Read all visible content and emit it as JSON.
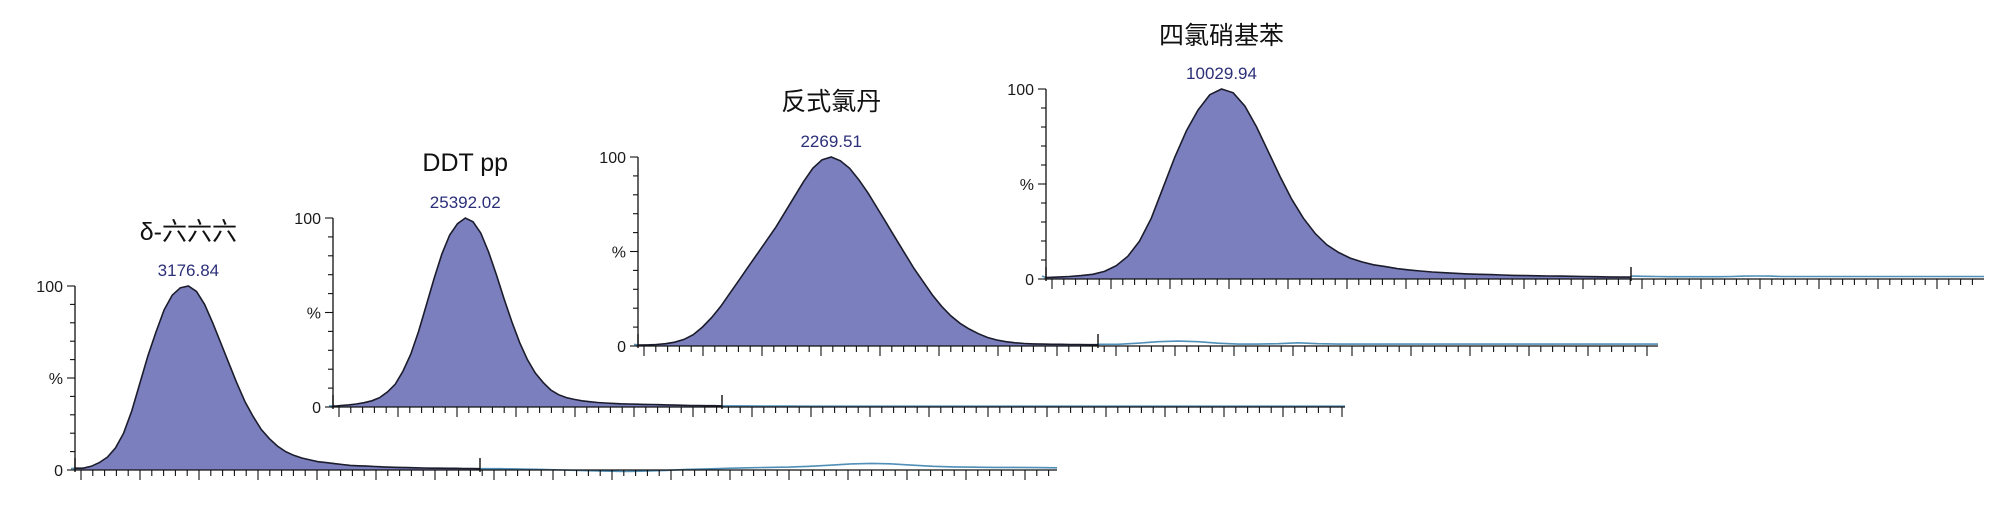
{
  "chart_data": [
    {
      "type": "area",
      "title": "δ-六六六",
      "peak_label": "3176.84",
      "yticks": [
        "100",
        "%",
        "0"
      ],
      "ylim": [
        0,
        100
      ],
      "x_mark": [
        0.0,
        1.0
      ],
      "x": [
        0.0,
        0.01,
        0.02,
        0.04,
        0.06,
        0.08,
        0.1,
        0.12,
        0.14,
        0.16,
        0.18,
        0.2,
        0.22,
        0.24,
        0.26,
        0.28,
        0.3,
        0.32,
        0.34,
        0.36,
        0.38,
        0.4,
        0.42,
        0.44,
        0.46,
        0.48,
        0.5,
        0.52,
        0.54,
        0.56,
        0.58,
        0.6,
        0.62,
        0.64,
        0.66,
        0.68,
        0.7,
        0.72,
        0.74,
        0.76,
        0.78,
        0.8,
        0.82,
        0.84,
        0.86,
        0.88,
        0.9,
        0.92,
        0.94,
        0.96,
        0.98,
        1.0
      ],
      "y": [
        1,
        1,
        1,
        2,
        4,
        7,
        12,
        20,
        32,
        47,
        62,
        75,
        87,
        95,
        99,
        100,
        97,
        90,
        80,
        69,
        58,
        47,
        37,
        29,
        22,
        17,
        13,
        10,
        8,
        6.5,
        5.5,
        4.5,
        4,
        3.5,
        3,
        2.5,
        2.3,
        2.1,
        1.9,
        1.7,
        1.5,
        1.4,
        1.3,
        1.2,
        1.1,
        1.0,
        1.0,
        0.9,
        0.9,
        0.8,
        0.8,
        0.7
      ],
      "baseline_y": [
        0.7,
        0.7,
        0.5,
        0.3,
        0.0,
        -0.3,
        -0.6,
        -0.8,
        -0.6,
        -0.2,
        0.3,
        0.6,
        0.9,
        1.2,
        1.4,
        1.6,
        2.0,
        2.6,
        3.3,
        3.6,
        3.3,
        2.6,
        2.0,
        1.7,
        1.5,
        1.4,
        1.4,
        1.3,
        1.2
      ],
      "colors": {
        "fill": "#7b7fbd",
        "outline": "#1b1c2c",
        "baseline": "#4f8fb8"
      }
    },
    {
      "type": "area",
      "title": "DDT pp",
      "peak_label": "25392.02",
      "yticks": [
        "100",
        "%",
        "0"
      ],
      "ylim": [
        0,
        100
      ],
      "x_mark": [
        0.0,
        1.0
      ],
      "x": [
        0.0,
        0.01,
        0.02,
        0.04,
        0.06,
        0.08,
        0.1,
        0.12,
        0.14,
        0.16,
        0.18,
        0.2,
        0.22,
        0.24,
        0.26,
        0.28,
        0.3,
        0.32,
        0.34,
        0.36,
        0.38,
        0.4,
        0.42,
        0.44,
        0.46,
        0.48,
        0.5,
        0.52,
        0.54,
        0.56,
        0.58,
        0.6,
        0.62,
        0.64,
        0.66,
        0.68,
        0.7,
        0.72,
        0.74,
        0.76,
        0.78,
        0.8,
        0.82,
        0.84,
        0.86,
        0.88,
        0.9,
        0.92,
        0.94,
        0.96,
        0.98,
        1.0
      ],
      "y": [
        0.5,
        0.6,
        0.8,
        1.1,
        1.6,
        2.3,
        3.3,
        5,
        8,
        12,
        19,
        28,
        40,
        54,
        68,
        81,
        91,
        97,
        100,
        98,
        92,
        82,
        70,
        57,
        45,
        34,
        25,
        18,
        13,
        9,
        6.5,
        5,
        4,
        3.3,
        2.8,
        2.4,
        2.1,
        1.9,
        1.7,
        1.6,
        1.5,
        1.4,
        1.3,
        1.2,
        1.1,
        1.0,
        0.9,
        0.8,
        0.8,
        0.7,
        0.7,
        0.6
      ],
      "baseline_y": [
        0.6,
        0.6,
        0.5,
        0.5,
        0.4,
        0.4,
        0.4,
        0.4,
        0.4,
        0.4,
        0.4,
        0.4,
        0.4,
        0.4,
        0.4,
        0.4,
        0.4,
        0.4,
        0.4,
        0.4,
        0.4,
        0.4,
        0.4,
        0.4,
        0.4,
        0.4,
        0.4,
        0.4,
        0.4
      ],
      "colors": {
        "fill": "#7b7fbd",
        "outline": "#1b1c2c",
        "baseline": "#4f8fb8"
      }
    },
    {
      "type": "area",
      "title": "反式氯丹",
      "peak_label": "2269.51",
      "yticks": [
        "100",
        "%",
        "0"
      ],
      "ylim": [
        0,
        100
      ],
      "x_mark": [
        0.0,
        1.0
      ],
      "x": [
        0.0,
        0.02,
        0.04,
        0.06,
        0.08,
        0.1,
        0.12,
        0.14,
        0.16,
        0.18,
        0.2,
        0.22,
        0.24,
        0.26,
        0.28,
        0.3,
        0.32,
        0.34,
        0.36,
        0.38,
        0.4,
        0.42,
        0.44,
        0.46,
        0.48,
        0.5,
        0.52,
        0.54,
        0.56,
        0.58,
        0.6,
        0.62,
        0.64,
        0.66,
        0.68,
        0.7,
        0.72,
        0.74,
        0.76,
        0.78,
        0.8,
        0.82,
        0.84,
        0.86,
        0.88,
        0.9,
        0.92,
        0.94,
        0.96,
        0.98,
        1.0
      ],
      "y": [
        0.5,
        0.6,
        0.8,
        1.2,
        2.0,
        3.5,
        6,
        10,
        15,
        21,
        28,
        35,
        42,
        49,
        56,
        63,
        71,
        79,
        87,
        94,
        98.5,
        100,
        98,
        94,
        88,
        81,
        73,
        65,
        57,
        49,
        41,
        34,
        27,
        21,
        16,
        12,
        9,
        6.5,
        4.5,
        3.2,
        2.3,
        1.7,
        1.3,
        1.1,
        1.0,
        0.9,
        0.9,
        0.8,
        0.8,
        0.7,
        0.7
      ],
      "baseline_y": [
        0.9,
        0.9,
        1.5,
        2.3,
        2.6,
        2.3,
        1.5,
        1.0,
        1.0,
        1.2,
        1.7,
        1.2,
        1.0,
        1.0,
        1.0,
        1.0,
        1.0,
        1.0,
        1.0,
        1.0,
        1.0,
        1.0,
        1.0,
        1.0,
        1.0,
        1.0,
        1.0,
        1.0,
        1.0
      ],
      "colors": {
        "fill": "#7b7fbd",
        "outline": "#1b1c2c",
        "baseline": "#4f8fb8"
      }
    },
    {
      "type": "area",
      "title": "四氯硝基苯",
      "peak_label": "10029.94",
      "yticks": [
        "100",
        "%",
        "0"
      ],
      "ylim": [
        0,
        100
      ],
      "x_mark": [
        0.0,
        1.0
      ],
      "x": [
        0.0,
        0.01,
        0.02,
        0.04,
        0.06,
        0.08,
        0.1,
        0.12,
        0.14,
        0.16,
        0.18,
        0.2,
        0.22,
        0.24,
        0.26,
        0.28,
        0.3,
        0.32,
        0.34,
        0.36,
        0.38,
        0.4,
        0.42,
        0.44,
        0.46,
        0.48,
        0.5,
        0.52,
        0.54,
        0.56,
        0.58,
        0.6,
        0.62,
        0.64,
        0.66,
        0.68,
        0.7,
        0.72,
        0.74,
        0.76,
        0.78,
        0.8,
        0.82,
        0.84,
        0.86,
        0.88,
        0.9,
        0.92,
        0.94,
        0.96,
        0.98,
        1.0
      ],
      "y": [
        0.8,
        0.9,
        1.0,
        1.3,
        1.8,
        2.5,
        4,
        7,
        12,
        20,
        32,
        48,
        64,
        78,
        89,
        97,
        100,
        98,
        91,
        80,
        67,
        54,
        42,
        32,
        24,
        18,
        14,
        11,
        9,
        7.5,
        6.5,
        5.5,
        4.8,
        4.2,
        3.7,
        3.3,
        3.0,
        2.7,
        2.5,
        2.3,
        2.1,
        1.9,
        1.8,
        1.7,
        1.6,
        1.5,
        1.4,
        1.3,
        1.2,
        1.1,
        1.0,
        1.0
      ],
      "baseline_y": [
        1.5,
        1.4,
        1.3,
        1.2,
        1.2,
        1.2,
        1.2,
        1.2,
        1.3,
        1.5,
        1.6,
        1.5,
        1.3,
        1.3,
        1.3,
        1.3,
        1.3,
        1.3,
        1.3,
        1.3,
        1.3,
        1.3,
        1.3,
        1.3,
        1.3,
        1.3,
        1.3,
        1.3,
        1.3
      ],
      "colors": {
        "fill": "#7b7fbd",
        "outline": "#1b1c2c",
        "baseline": "#4f8fb8"
      }
    }
  ]
}
